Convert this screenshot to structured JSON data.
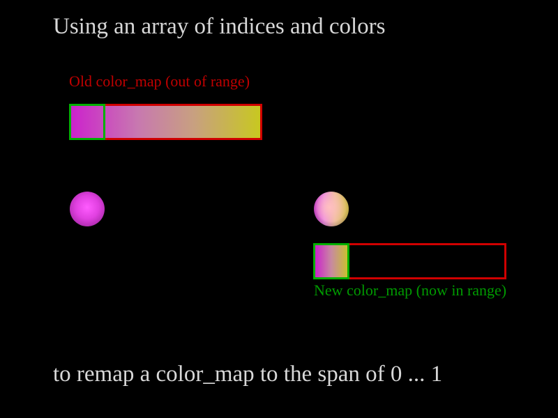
{
  "title": "Using an array of indices and colors",
  "old_label": "Old color_map (out of range)",
  "new_label": "New color_map (now in range)",
  "footer": "to remap a color_map to the span of 0 ... 1",
  "colors": {
    "old_outline": "#d00000",
    "range_outline": "#00b000",
    "map_start": "#cc22cc",
    "map_end": "#c8c820",
    "text": "#d8d8d8"
  }
}
